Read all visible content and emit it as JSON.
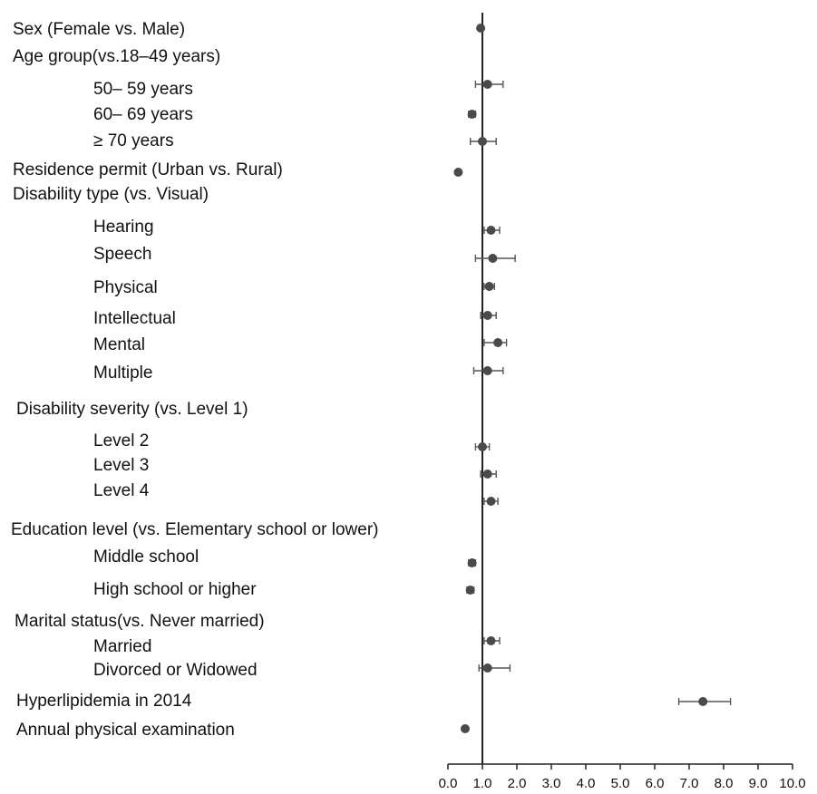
{
  "chart_data": {
    "type": "forest",
    "xlim": [
      0.0,
      10.0
    ],
    "reference_line": 1.0,
    "x_ticks": [
      "0.0",
      "1.0",
      "2.0",
      "3.0",
      "4.0",
      "5.0",
      "6.0",
      "7.0",
      "8.0",
      "9.0",
      "10.0"
    ],
    "rows": [
      {
        "label": "Sex (Female vs. Male)",
        "estimate": 0.95,
        "lower": 0.9,
        "upper": 1.0
      },
      {
        "label": "Age group(vs.18–49 years)"
      },
      {
        "label": "50– 59  years",
        "estimate": 1.15,
        "lower": 0.8,
        "upper": 1.6
      },
      {
        "label": "60– 69  years",
        "estimate": 0.7,
        "lower": 0.6,
        "upper": 0.8
      },
      {
        "label": "≥ 70     years",
        "estimate": 1.0,
        "lower": 0.65,
        "upper": 1.4
      },
      {
        "label": "Residence permit (Urban vs. Rural)",
        "estimate": 0.3,
        "lower": 0.25,
        "upper": 0.35
      },
      {
        "label": "Disability type (vs. Visual)"
      },
      {
        "label": "Hearing",
        "estimate": 1.25,
        "lower": 1.05,
        "upper": 1.5
      },
      {
        "label": "Speech",
        "estimate": 1.3,
        "lower": 0.8,
        "upper": 1.95
      },
      {
        "label": "Physical",
        "estimate": 1.2,
        "lower": 1.05,
        "upper": 1.35
      },
      {
        "label": "Intellectual",
        "estimate": 1.15,
        "lower": 0.95,
        "upper": 1.4
      },
      {
        "label": "Mental",
        "estimate": 1.45,
        "lower": 1.05,
        "upper": 1.7
      },
      {
        "label": "Multiple",
        "estimate": 1.15,
        "lower": 0.75,
        "upper": 1.6
      },
      {
        "label": "Disability severity (vs. Level 1)"
      },
      {
        "label": "Level 2",
        "estimate": 1.0,
        "lower": 0.8,
        "upper": 1.2
      },
      {
        "label": "Level 3",
        "estimate": 1.15,
        "lower": 0.95,
        "upper": 1.4
      },
      {
        "label": "Level 4",
        "estimate": 1.25,
        "lower": 1.05,
        "upper": 1.45
      },
      {
        "label": "Education level (vs. Elementary school or lower)"
      },
      {
        "label": "Middle school",
        "estimate": 0.7,
        "lower": 0.6,
        "upper": 0.8
      },
      {
        "label": "High school or higher",
        "estimate": 0.65,
        "lower": 0.55,
        "upper": 0.75
      },
      {
        "label": "Marital status(vs. Never married)"
      },
      {
        "label": "Married",
        "estimate": 1.25,
        "lower": 1.05,
        "upper": 1.5
      },
      {
        "label": "Divorced  or  Widowed",
        "estimate": 1.15,
        "lower": 0.9,
        "upper": 1.8
      },
      {
        "label": "Hyperlipidemia in 2014",
        "estimate": 7.4,
        "lower": 6.7,
        "upper": 8.2
      },
      {
        "label": "Annual physical examination",
        "estimate": 0.5,
        "lower": 0.45,
        "upper": 0.55
      }
    ]
  }
}
